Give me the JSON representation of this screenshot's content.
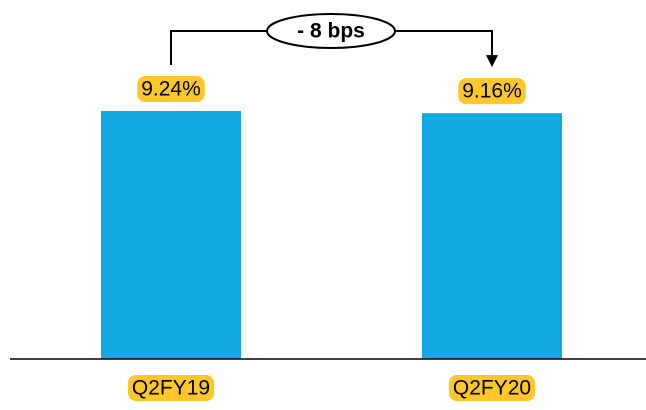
{
  "chart_data": {
    "type": "bar",
    "categories": [
      "Q2FY19",
      "Q2FY20"
    ],
    "values": [
      9.24,
      9.16
    ],
    "value_labels": [
      "9.24%",
      "9.16%"
    ],
    "title": "",
    "xlabel": "",
    "ylabel": "",
    "annotation": {
      "text": "- 8 bps",
      "from_category": "Q2FY19",
      "to_category": "Q2FY20"
    },
    "grid": false,
    "legend": "none"
  },
  "colors": {
    "bar": "#12A9E3",
    "label_highlight": "#FFC72C",
    "axis": "#000000",
    "text": "#000000",
    "annotation_outline": "#000000"
  }
}
